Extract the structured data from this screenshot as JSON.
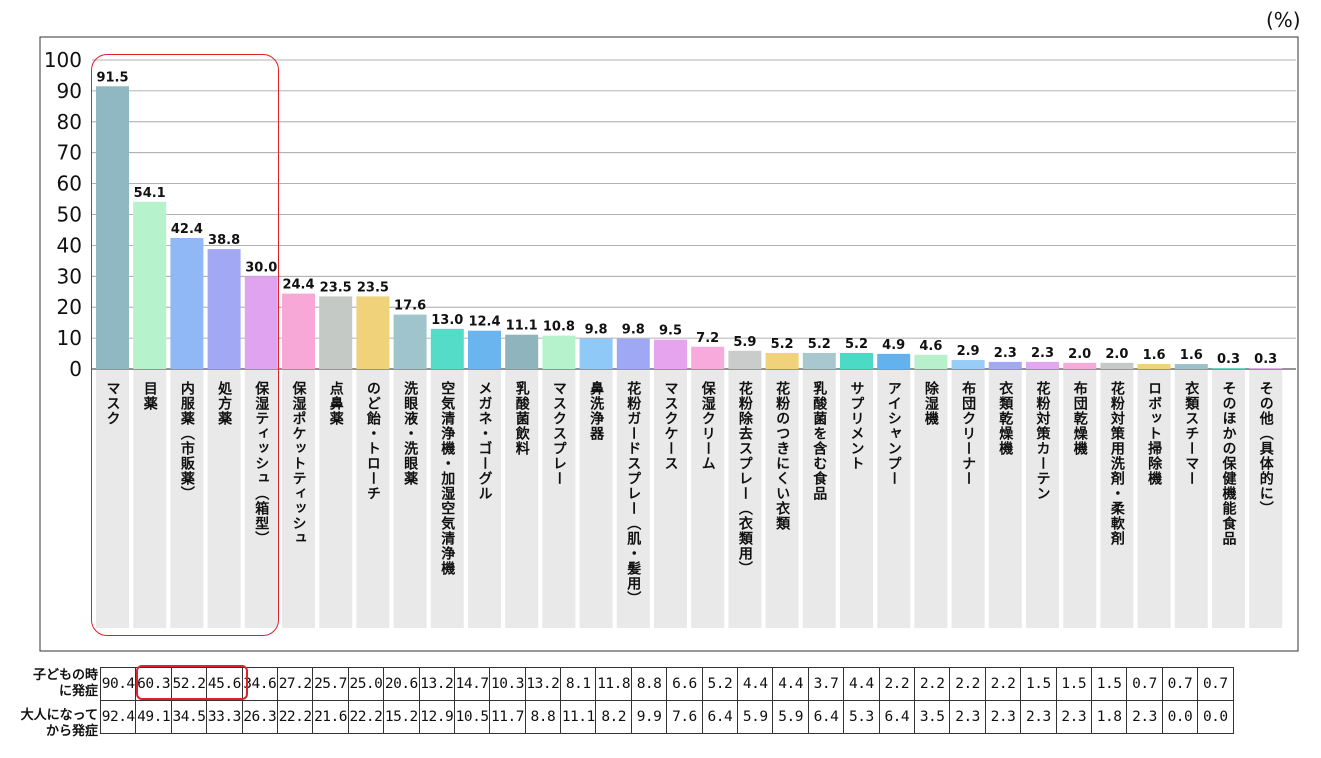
{
  "unit_label": "(%)",
  "table_rows": [
    {
      "label_line1": "子どもの時",
      "label_line2": "に発症",
      "values": [
        "90.4",
        "60.3",
        "52.2",
        "45.6",
        "34.6",
        "27.2",
        "25.7",
        "25.0",
        "20.6",
        "13.2",
        "14.7",
        "10.3",
        "13.2",
        "8.1",
        "11.8",
        "8.8",
        "6.6",
        "5.2",
        "4.4",
        "4.4",
        "3.7",
        "4.4",
        "2.2",
        "2.2",
        "2.2",
        "2.2",
        "1.5",
        "1.5",
        "1.5",
        "0.7",
        "0.7",
        "0.7"
      ]
    },
    {
      "label_line1": "大人になって",
      "label_line2": "から発症",
      "values": [
        "92.4",
        "49.1",
        "34.5",
        "33.3",
        "26.3",
        "22.2",
        "21.6",
        "22.2",
        "15.2",
        "12.9",
        "10.5",
        "11.7",
        "8.8",
        "11.1",
        "8.2",
        "9.9",
        "7.6",
        "6.4",
        "5.9",
        "5.9",
        "6.4",
        "5.3",
        "6.4",
        "3.5",
        "2.3",
        "2.3",
        "2.3",
        "2.3",
        "1.8",
        "2.3",
        "0.0",
        "0.0"
      ]
    }
  ],
  "chart_data": {
    "type": "bar",
    "title": "",
    "xlabel": "",
    "ylabel": "",
    "unit": "(%)",
    "ylim": [
      0,
      100
    ],
    "yticks": [
      0,
      10,
      20,
      30,
      40,
      50,
      60,
      70,
      80,
      90,
      100
    ],
    "grid": true,
    "legend": "none",
    "categories": [
      "マスク",
      "目薬",
      "内服薬（市販薬）",
      "処方薬",
      "保湿ティッシュ（箱型）",
      "保湿ポケットティッシュ",
      "点鼻薬",
      "のど飴・トローチ",
      "洗眼液・洗眼薬",
      "空気清浄機・加湿空気清浄機",
      "メガネ・ゴーグル",
      "乳酸菌飲料",
      "マスクスプレー",
      "鼻洗浄器",
      "花粉ガードスプレー（肌・髪用）",
      "マスクケース",
      "保湿クリーム",
      "花粉除去スプレー（衣類用）",
      "花粉のつきにくい衣類",
      "乳酸菌を含む食品",
      "サプリメント",
      "アイシャンプー",
      "除湿機",
      "布団クリーナー",
      "衣類乾燥機",
      "花粉対策カーテン",
      "布団乾燥機",
      "花粉対策用洗剤・柔軟剤",
      "ロボット掃除機",
      "衣類スチーマー",
      "そのほかの保健機能食品",
      "その他（具体的に）"
    ],
    "values": [
      91.5,
      54.1,
      42.4,
      38.8,
      30.0,
      24.4,
      23.5,
      23.5,
      17.6,
      13.0,
      12.4,
      11.1,
      10.8,
      9.8,
      9.8,
      9.5,
      7.2,
      5.9,
      5.2,
      5.2,
      5.2,
      4.9,
      4.6,
      2.9,
      2.3,
      2.3,
      2.0,
      2.0,
      1.6,
      1.6,
      0.3,
      0.3
    ],
    "value_labels": [
      "91.5",
      "54.1",
      "42.4",
      "38.8",
      "30.0",
      "24.4",
      "23.5",
      "23.5",
      "17.6",
      "13.0",
      "12.4",
      "11.1",
      "10.8",
      "9.8",
      "9.8",
      "9.5",
      "7.2",
      "5.9",
      "5.2",
      "5.2",
      "5.2",
      "4.9",
      "4.6",
      "2.9",
      "2.3",
      "2.3",
      "2.0",
      "2.0",
      "1.6",
      "1.6",
      "0.3",
      "0.3"
    ],
    "colors": [
      "#8fb8c2",
      "#b6f2cc",
      "#8fb8f5",
      "#a3a8f5",
      "#e0a3f0",
      "#f7a8d6",
      "#c5c9c6",
      "#f0d27a",
      "#9fc4cc",
      "#55dcc8",
      "#6ab5f0",
      "#8fb4bd",
      "#b6f2cc",
      "#8ec9f7",
      "#9ea8f5",
      "#e6a3ee",
      "#f7aadb",
      "#c9cccb",
      "#f0d27a",
      "#a8c8d0",
      "#4cd9c6",
      "#63b2f0",
      "#b9f0cc",
      "#96ccf5",
      "#a3aaf3",
      "#e2a8ef",
      "#f5aad9",
      "#c6c9c8",
      "#f0d27a",
      "#9cc0c8",
      "#5bd9c8",
      "#e6a3ee"
    ]
  }
}
